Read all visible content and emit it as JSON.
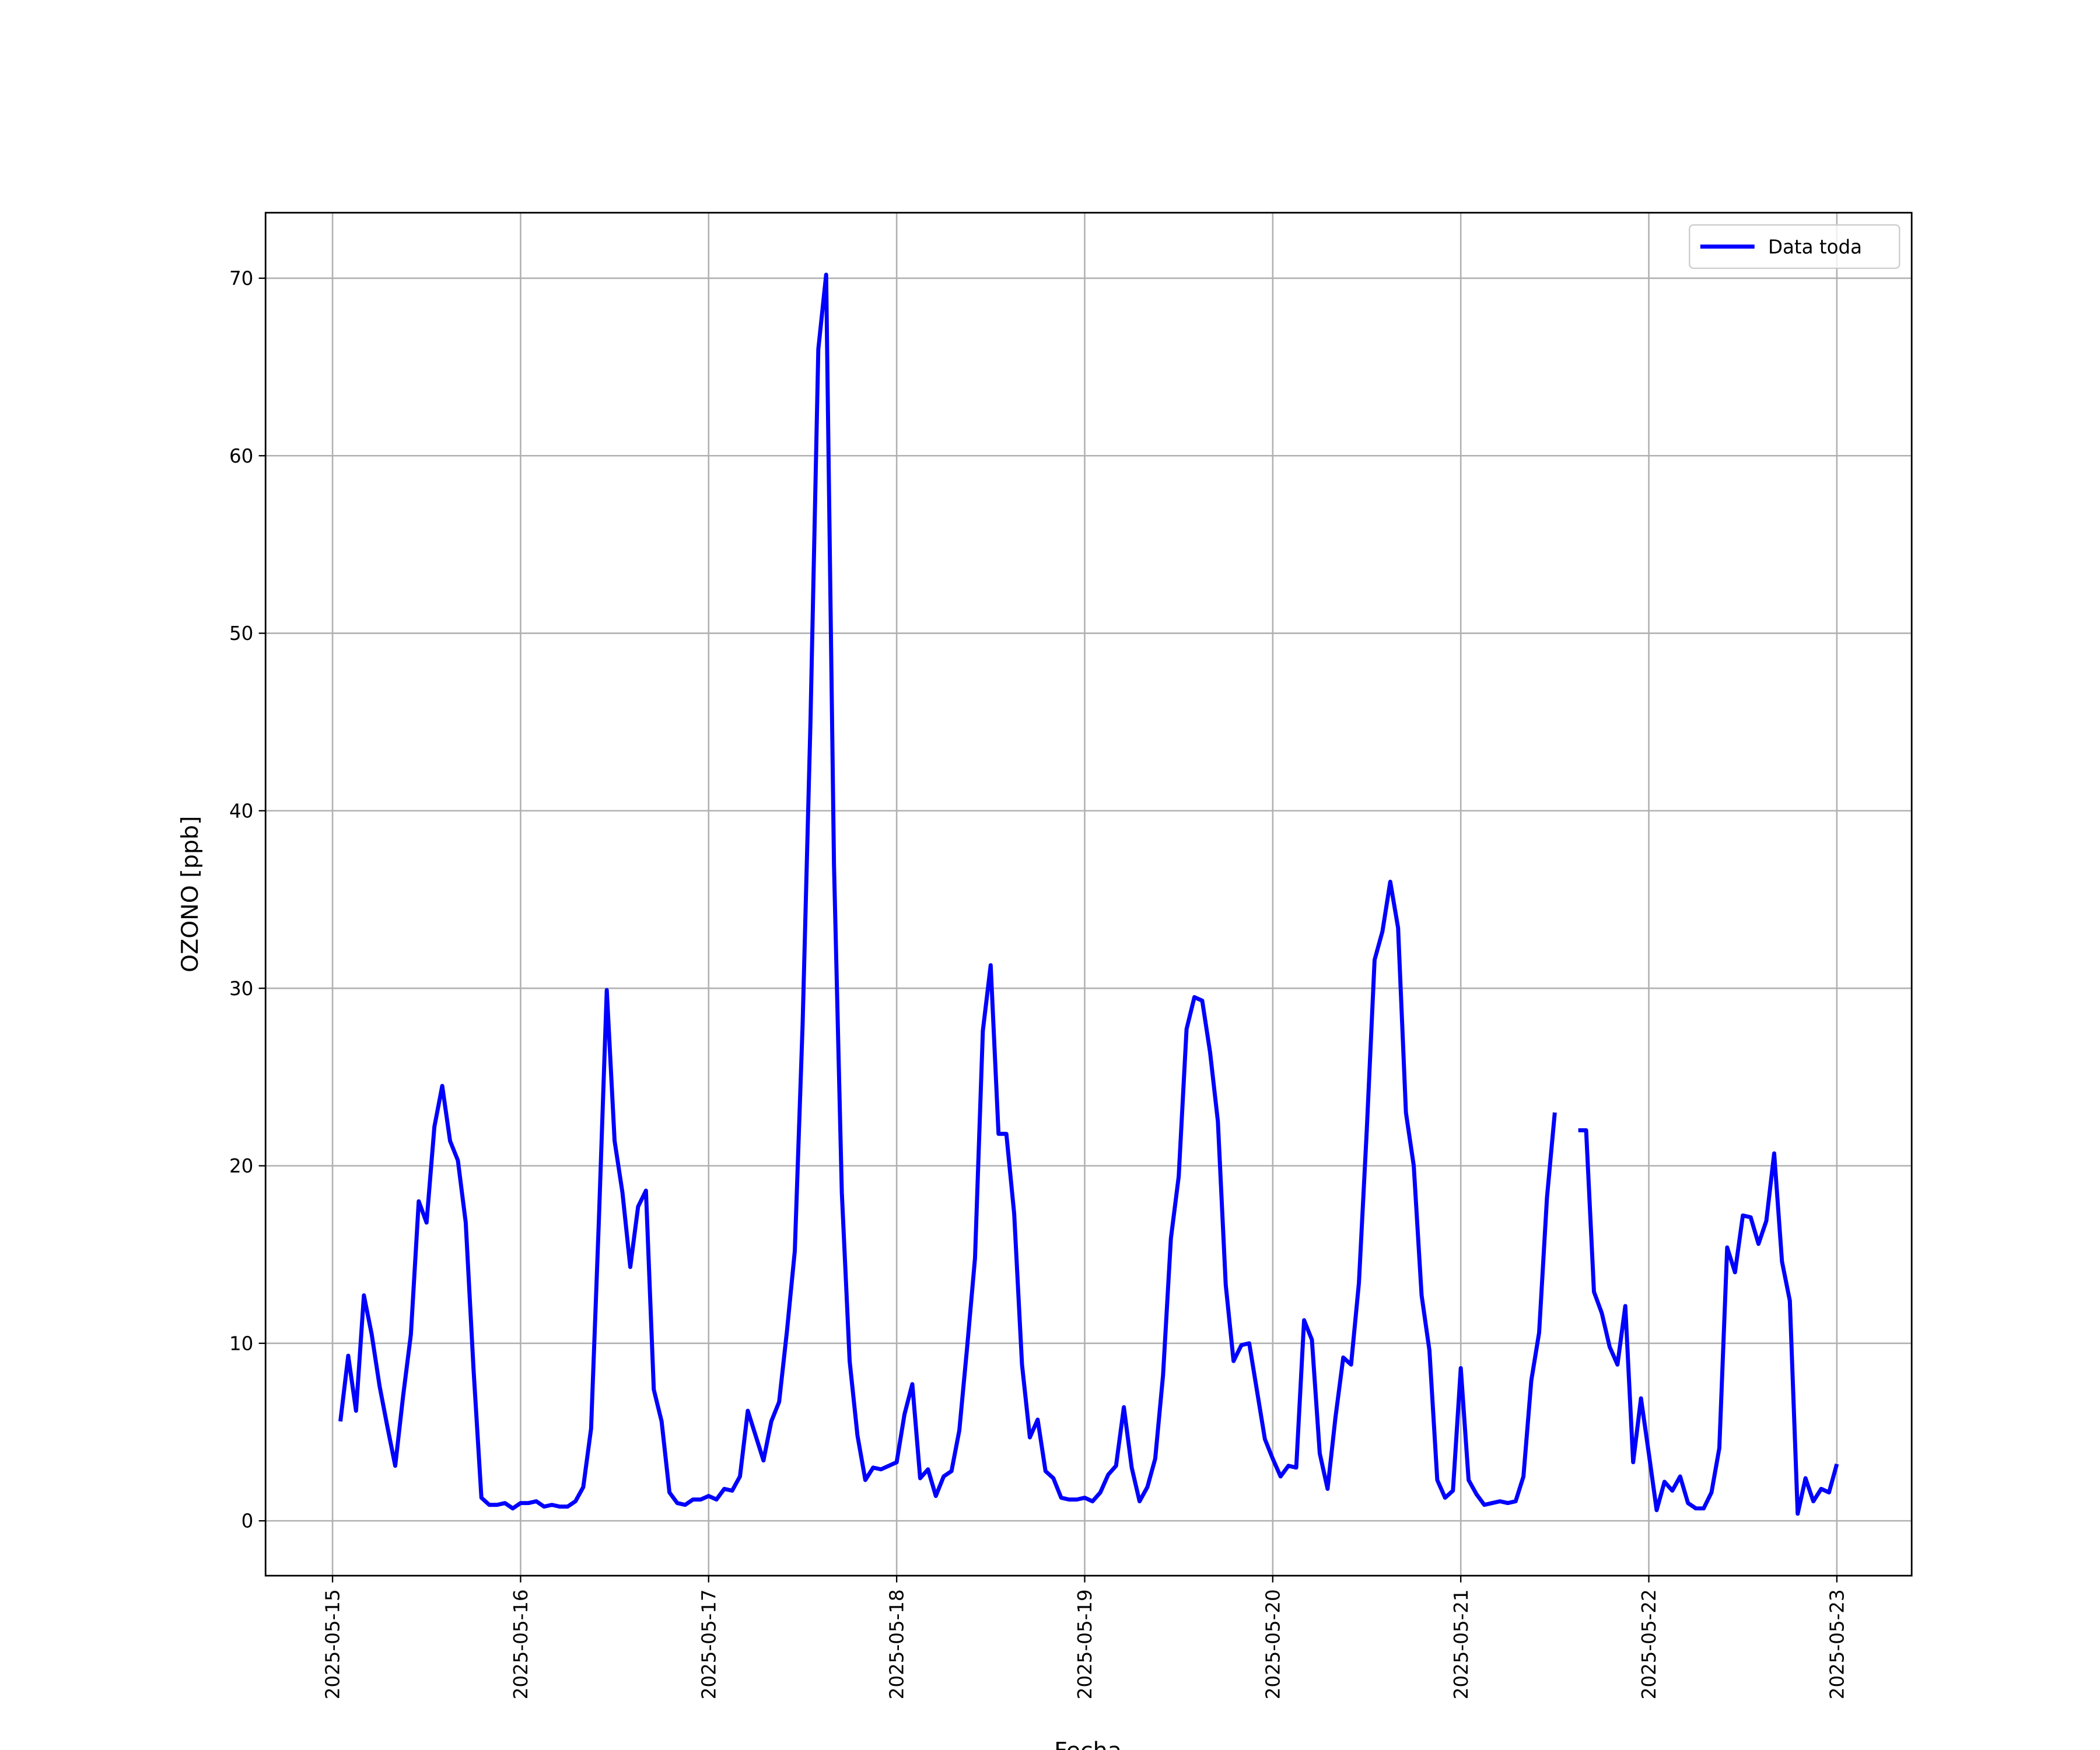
{
  "chart_data": {
    "type": "line",
    "xlabel": "Fecha",
    "ylabel": "OZONO [ppb]",
    "x": [
      1,
      2,
      3,
      4,
      5,
      6,
      7,
      8,
      9,
      10,
      11,
      12,
      13,
      14,
      15,
      16,
      17,
      18,
      19,
      20,
      21,
      22,
      23,
      24,
      25,
      26,
      27,
      28,
      29,
      30,
      31,
      32,
      33,
      34,
      35,
      36,
      37,
      38,
      39,
      40,
      41,
      42,
      43,
      44,
      45,
      46,
      47,
      48,
      49,
      50,
      51,
      52,
      53,
      54,
      55,
      56,
      57,
      58,
      59,
      60,
      61,
      62,
      63,
      64,
      65,
      66,
      67,
      68,
      69,
      70,
      71,
      72,
      73,
      74,
      75,
      76,
      77,
      78,
      79,
      80,
      81,
      82,
      83,
      84,
      85,
      86,
      87,
      88,
      89,
      90,
      91,
      92,
      93,
      94,
      95,
      96,
      97,
      98,
      99,
      100,
      101,
      102,
      103,
      104,
      105,
      106,
      107,
      108,
      109,
      110,
      111,
      112,
      113,
      114,
      115,
      116,
      117,
      118,
      119,
      120,
      121,
      122,
      123,
      124,
      125,
      126,
      127,
      128,
      129,
      130,
      131,
      132,
      133,
      134,
      135,
      136,
      137,
      138,
      139,
      140,
      141,
      142,
      143,
      144,
      145,
      146,
      147,
      148,
      149,
      150,
      151,
      152,
      153,
      154,
      155,
      156,
      157,
      158,
      159,
      160,
      161,
      162,
      163,
      164,
      165,
      166,
      167,
      168,
      169,
      170,
      171,
      172,
      173,
      174,
      175,
      176,
      177,
      178,
      179,
      180,
      181,
      182,
      183,
      184,
      185,
      186,
      187,
      188,
      189,
      190,
      191,
      192
    ],
    "series": [
      {
        "name": "Data toda",
        "color": "#0000ff",
        "values": [
          5.6,
          9.3,
          6.2,
          12.7,
          10.5,
          7.6,
          5.3,
          3.1,
          7.0,
          10.5,
          18.0,
          16.8,
          22.2,
          24.5,
          21.4,
          20.3,
          16.8,
          8.5,
          1.3,
          0.9,
          0.9,
          1.0,
          0.7,
          1.0,
          1.0,
          1.1,
          0.8,
          0.9,
          0.8,
          0.8,
          1.1,
          1.9,
          5.2,
          17.0,
          29.9,
          21.4,
          18.5,
          14.3,
          17.7,
          18.6,
          7.4,
          5.6,
          1.6,
          1.0,
          0.9,
          1.2,
          1.2,
          1.4,
          1.2,
          1.8,
          1.7,
          2.5,
          6.2,
          4.8,
          3.4,
          5.6,
          6.7,
          10.7,
          15.2,
          28.0,
          45.0,
          66.0,
          70.2,
          37.0,
          18.5,
          9.0,
          4.8,
          2.3,
          3.0,
          2.9,
          3.1,
          3.3,
          6.0,
          7.7,
          2.4,
          2.9,
          1.4,
          2.5,
          2.8,
          5.1,
          9.8,
          14.8,
          27.6,
          31.3,
          21.8,
          21.8,
          17.3,
          8.8,
          4.7,
          5.7,
          2.8,
          2.4,
          1.3,
          1.2,
          1.2,
          1.3,
          1.1,
          1.6,
          2.6,
          3.1,
          6.4,
          3.0,
          1.1,
          1.9,
          3.5,
          8.2,
          15.9,
          19.4,
          27.7,
          29.5,
          29.3,
          26.4,
          22.5,
          13.3,
          9.0,
          9.9,
          10.0,
          7.3,
          4.6,
          3.5,
          2.5,
          3.1,
          3.0,
          11.3,
          10.2,
          3.8,
          1.8,
          5.8,
          9.2,
          8.8,
          13.4,
          22.0,
          31.6,
          33.2,
          36.0,
          33.4,
          23.0,
          20.0,
          12.7,
          9.6,
          2.3,
          1.3,
          1.7,
          8.6,
          2.3,
          1.5,
          0.9,
          1.0,
          1.1,
          1.0,
          1.1,
          2.5,
          7.9,
          10.6,
          18.2,
          23.0,
          null,
          null,
          22.0,
          22.0,
          12.9,
          11.7,
          9.8,
          8.8,
          12.1,
          3.3,
          6.9,
          3.8,
          0.6,
          2.2,
          1.7,
          2.5,
          1.0,
          0.7,
          0.7,
          1.6,
          4.1,
          15.4,
          14.0,
          17.2,
          17.1,
          15.6,
          16.9,
          20.7,
          14.6,
          12.4,
          0.4,
          2.4,
          1.1,
          1.8,
          1.6,
          3.2
        ]
      }
    ],
    "xlim": [
      -8.55,
      201.55
    ],
    "xticks": [
      {
        "value": 0,
        "label": "2025-05-15"
      },
      {
        "value": 24,
        "label": "2025-05-16"
      },
      {
        "value": 48,
        "label": "2025-05-17"
      },
      {
        "value": 72,
        "label": "2025-05-18"
      },
      {
        "value": 96,
        "label": "2025-05-19"
      },
      {
        "value": 120,
        "label": "2025-05-20"
      },
      {
        "value": 144,
        "label": "2025-05-21"
      },
      {
        "value": 168,
        "label": "2025-05-22"
      },
      {
        "value": 192,
        "label": "2025-05-23"
      }
    ],
    "ylim": [
      -3.09,
      73.69
    ],
    "yticks": [
      0,
      10,
      20,
      30,
      40,
      50,
      60,
      70
    ],
    "grid": true,
    "legend": "upper right"
  }
}
